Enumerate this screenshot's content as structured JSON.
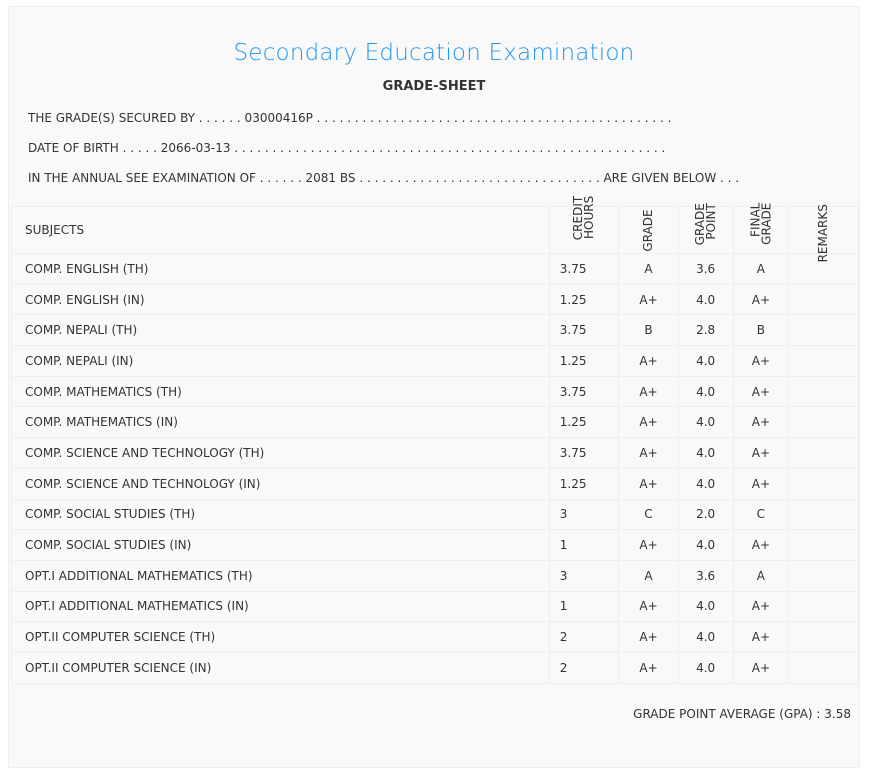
{
  "title": "Secondary Education Examination",
  "subtitle": "GRADE-SHEET",
  "info": {
    "secured_by": "THE GRADE(S) SECURED BY . . . . . . 03000416P . . . . . . . . . . . . . . . . . . . . . . . . . . . . . . . . . . . . . . . . . . . . . . .",
    "dob": "DATE OF BIRTH . . . . . 2066-03-13 . . . . . . . . . . . . . . . . . . . . . . . . . . . . . . . . . . . . . . . . . . . . . . . . . . . . . . . . .",
    "exam": "IN THE ANNUAL SEE EXAMINATION OF . . . . . . 2081 BS . . . . . . . . . . . . . . . . . . . . . . . . . . . . . . . . ARE GIVEN BELOW . . ."
  },
  "headers": {
    "subjects": "SUBJECTS",
    "credit": "CREDIT\nHOURS",
    "grade": "GRADE",
    "grade_point": "GRADE\nPOINT",
    "final_grade": "FINAL\nGRADE",
    "remarks": "REMARKS"
  },
  "rows": [
    {
      "subject": "COMP. ENGLISH (TH)",
      "credit": "3.75",
      "grade": "A",
      "gp": "3.6",
      "final": "A"
    },
    {
      "subject": "COMP. ENGLISH (IN)",
      "credit": "1.25",
      "grade": "A+",
      "gp": "4.0",
      "final": "A+"
    },
    {
      "subject": "COMP. NEPALI (TH)",
      "credit": "3.75",
      "grade": "B",
      "gp": "2.8",
      "final": "B"
    },
    {
      "subject": "COMP. NEPALI (IN)",
      "credit": "1.25",
      "grade": "A+",
      "gp": "4.0",
      "final": "A+"
    },
    {
      "subject": "COMP. MATHEMATICS (TH)",
      "credit": "3.75",
      "grade": "A+",
      "gp": "4.0",
      "final": "A+"
    },
    {
      "subject": "COMP. MATHEMATICS (IN)",
      "credit": "1.25",
      "grade": "A+",
      "gp": "4.0",
      "final": "A+"
    },
    {
      "subject": "COMP. SCIENCE AND TECHNOLOGY (TH)",
      "credit": "3.75",
      "grade": "A+",
      "gp": "4.0",
      "final": "A+"
    },
    {
      "subject": "COMP. SCIENCE AND TECHNOLOGY (IN)",
      "credit": "1.25",
      "grade": "A+",
      "gp": "4.0",
      "final": "A+"
    },
    {
      "subject": "COMP. SOCIAL STUDIES (TH)",
      "credit": "3",
      "grade": "C",
      "gp": "2.0",
      "final": "C"
    },
    {
      "subject": "COMP. SOCIAL STUDIES (IN)",
      "credit": "1",
      "grade": "A+",
      "gp": "4.0",
      "final": "A+"
    },
    {
      "subject": "OPT.I ADDITIONAL MATHEMATICS (TH)",
      "credit": "3",
      "grade": "A",
      "gp": "3.6",
      "final": "A"
    },
    {
      "subject": "OPT.I ADDITIONAL MATHEMATICS (IN)",
      "credit": "1",
      "grade": "A+",
      "gp": "4.0",
      "final": "A+"
    },
    {
      "subject": "OPT.II COMPUTER SCIENCE (TH)",
      "credit": "2",
      "grade": "A+",
      "gp": "4.0",
      "final": "A+"
    },
    {
      "subject": "OPT.II COMPUTER SCIENCE (IN)",
      "credit": "2",
      "grade": "A+",
      "gp": "4.0",
      "final": "A+"
    }
  ],
  "gpa": "GRADE POINT AVERAGE (GPA) : 3.58",
  "colors": {
    "title": "#2196f3",
    "text": "#333333",
    "card_bg": "#f9f9f9"
  }
}
